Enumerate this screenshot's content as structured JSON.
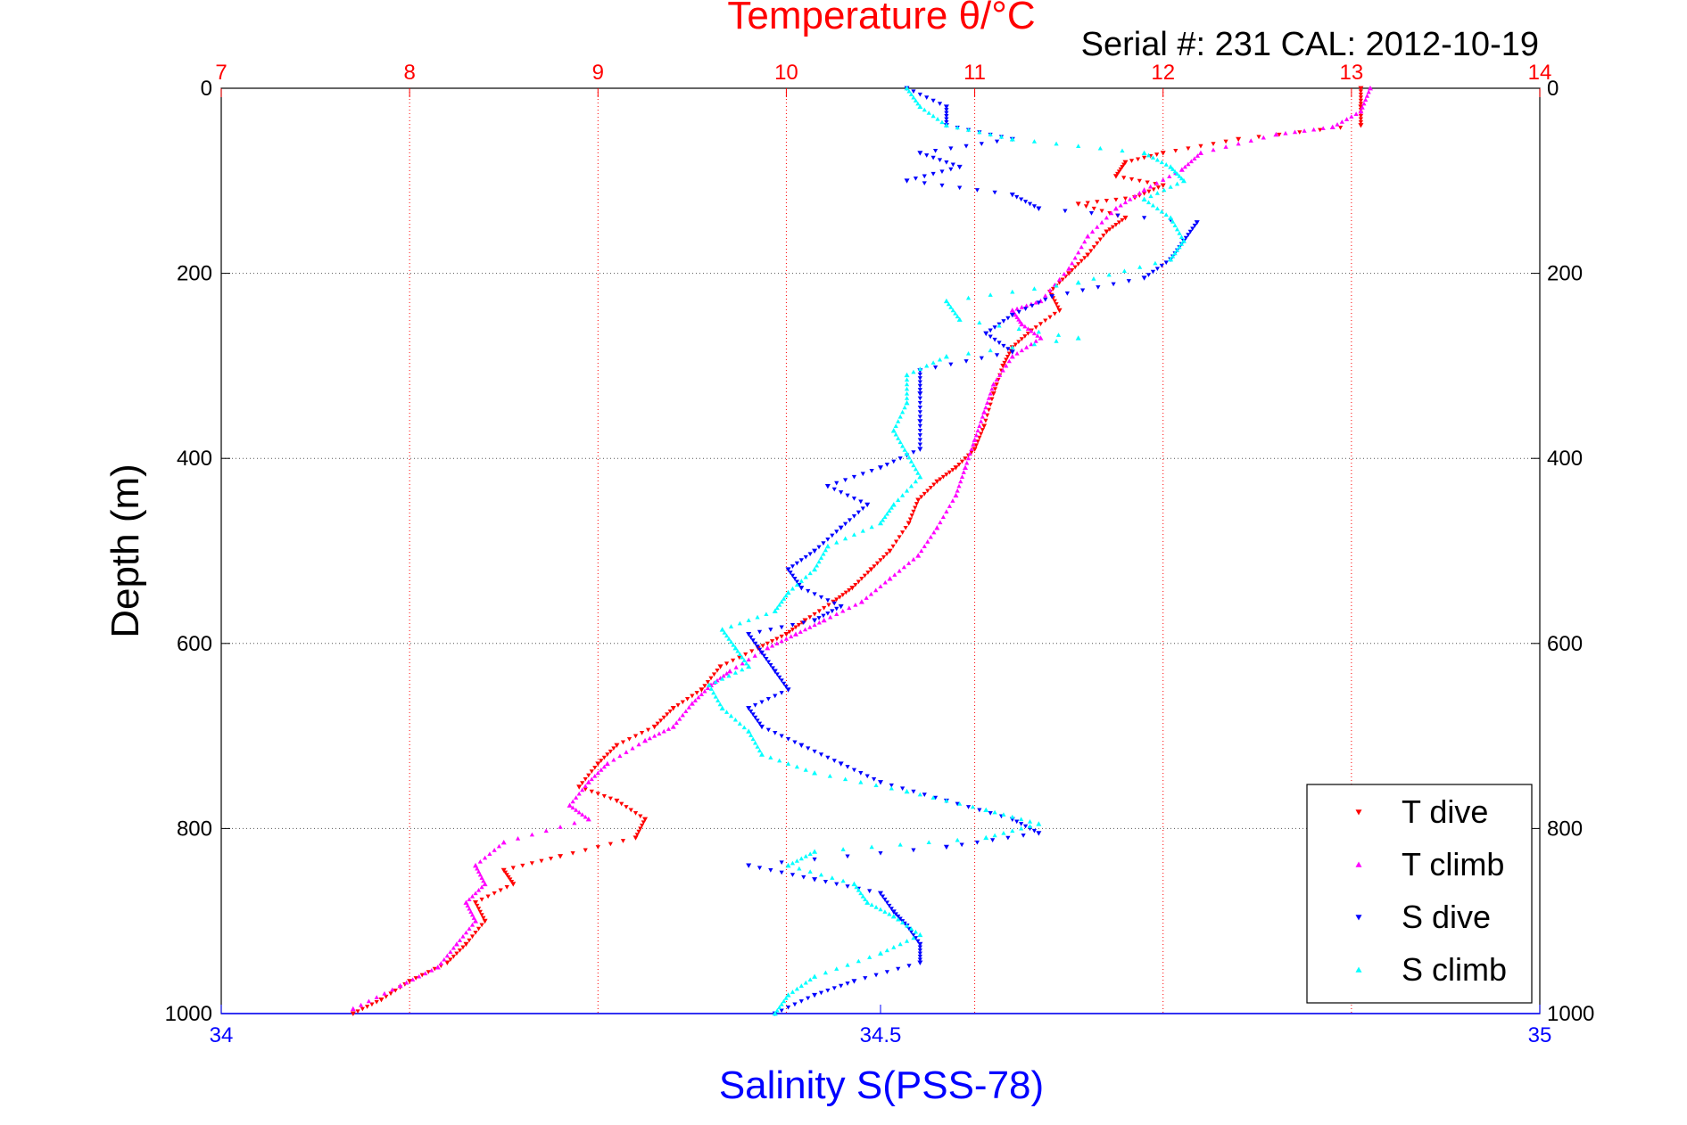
{
  "chart_data": {
    "type": "scatter",
    "title": "Temperature θ/°C",
    "subtitle": "Serial #: 231   CAL: 2012-10-19",
    "xlabel_bottom": "Salinity S(PSS-78)",
    "xlabel_top": "",
    "ylabel": "Depth (m)",
    "axes": {
      "temperature": {
        "range": [
          7,
          14
        ],
        "ticks": [
          "7",
          "8",
          "9",
          "10",
          "11",
          "12",
          "13",
          "14"
        ],
        "color": "#ff0000",
        "position": "top"
      },
      "salinity": {
        "range": [
          34,
          35
        ],
        "ticks": [
          "34",
          "34.5",
          "35"
        ],
        "tick_values": [
          34,
          34.5,
          35
        ],
        "color": "#0000ff",
        "position": "bottom"
      },
      "depth": {
        "range": [
          0,
          1000
        ],
        "reversed": true,
        "ticks": [
          "0",
          "200",
          "400",
          "600",
          "800",
          "1000"
        ],
        "tick_values": [
          0,
          200,
          400,
          600,
          800,
          1000
        ]
      }
    },
    "grid": true,
    "legend_position": "bottom-right",
    "series": [
      {
        "name": "T dive",
        "axis": "temperature",
        "color": "#ff0000",
        "marker": "triangle-down",
        "points": [
          [
            13.05,
            0
          ],
          [
            13.05,
            20
          ],
          [
            13.05,
            40
          ],
          [
            12.4,
            55
          ],
          [
            12.0,
            70
          ],
          [
            11.8,
            80
          ],
          [
            11.75,
            95
          ],
          [
            12.0,
            105
          ],
          [
            11.85,
            118
          ],
          [
            11.55,
            125
          ],
          [
            11.8,
            140
          ],
          [
            11.7,
            155
          ],
          [
            11.6,
            180
          ],
          [
            11.5,
            200
          ],
          [
            11.4,
            220
          ],
          [
            11.45,
            240
          ],
          [
            11.3,
            262
          ],
          [
            11.2,
            280
          ],
          [
            11.15,
            300
          ],
          [
            11.1,
            330
          ],
          [
            11.05,
            365
          ],
          [
            11.0,
            390
          ],
          [
            10.9,
            410
          ],
          [
            10.8,
            425
          ],
          [
            10.7,
            445
          ],
          [
            10.65,
            470
          ],
          [
            10.55,
            500
          ],
          [
            10.45,
            520
          ],
          [
            10.35,
            540
          ],
          [
            10.25,
            555
          ],
          [
            10.1,
            575
          ],
          [
            10.0,
            590
          ],
          [
            9.85,
            605
          ],
          [
            9.65,
            625
          ],
          [
            9.55,
            650
          ],
          [
            9.4,
            670
          ],
          [
            9.3,
            690
          ],
          [
            9.1,
            710
          ],
          [
            9.0,
            730
          ],
          [
            8.9,
            755
          ],
          [
            9.1,
            770
          ],
          [
            9.25,
            790
          ],
          [
            9.2,
            810
          ],
          [
            8.8,
            830
          ],
          [
            8.5,
            845
          ],
          [
            8.55,
            860
          ],
          [
            8.35,
            880
          ],
          [
            8.4,
            900
          ],
          [
            8.3,
            925
          ],
          [
            8.2,
            945
          ],
          [
            8.0,
            965
          ],
          [
            7.85,
            985
          ],
          [
            7.7,
            1000
          ]
        ]
      },
      {
        "name": "T climb",
        "axis": "temperature",
        "color": "#ff00ff",
        "marker": "triangle-up",
        "points": [
          [
            13.1,
            0
          ],
          [
            13.05,
            25
          ],
          [
            12.9,
            42
          ],
          [
            12.6,
            50
          ],
          [
            12.2,
            70
          ],
          [
            12.1,
            88
          ],
          [
            11.9,
            110
          ],
          [
            11.75,
            130
          ],
          [
            11.6,
            160
          ],
          [
            11.5,
            195
          ],
          [
            11.35,
            230
          ],
          [
            11.2,
            240
          ],
          [
            11.25,
            255
          ],
          [
            11.35,
            270
          ],
          [
            11.2,
            290
          ],
          [
            11.1,
            320
          ],
          [
            11.05,
            350
          ],
          [
            11.0,
            380
          ],
          [
            10.95,
            410
          ],
          [
            10.9,
            440
          ],
          [
            10.8,
            475
          ],
          [
            10.7,
            505
          ],
          [
            10.55,
            530
          ],
          [
            10.4,
            555
          ],
          [
            10.2,
            575
          ],
          [
            10.05,
            590
          ],
          [
            9.9,
            605
          ],
          [
            9.7,
            630
          ],
          [
            9.6,
            645
          ],
          [
            9.5,
            665
          ],
          [
            9.4,
            690
          ],
          [
            9.25,
            705
          ],
          [
            9.05,
            730
          ],
          [
            8.95,
            750
          ],
          [
            8.85,
            775
          ],
          [
            8.95,
            790
          ],
          [
            8.5,
            815
          ],
          [
            8.35,
            840
          ],
          [
            8.4,
            860
          ],
          [
            8.3,
            880
          ],
          [
            8.35,
            900
          ],
          [
            8.25,
            925
          ],
          [
            8.15,
            950
          ],
          [
            7.95,
            970
          ],
          [
            7.7,
            995
          ]
        ]
      },
      {
        "name": "S dive",
        "axis": "salinity",
        "color": "#0000ff",
        "marker": "triangle-down",
        "points": [
          [
            34.52,
            0
          ],
          [
            34.55,
            20
          ],
          [
            34.55,
            40
          ],
          [
            34.6,
            55
          ],
          [
            34.53,
            70
          ],
          [
            34.56,
            85
          ],
          [
            34.52,
            100
          ],
          [
            34.6,
            115
          ],
          [
            34.62,
            130
          ],
          [
            34.74,
            145
          ],
          [
            34.73,
            165
          ],
          [
            34.72,
            185
          ],
          [
            34.7,
            205
          ],
          [
            34.63,
            225
          ],
          [
            34.6,
            245
          ],
          [
            34.58,
            265
          ],
          [
            34.6,
            285
          ],
          [
            34.53,
            305
          ],
          [
            34.53,
            330
          ],
          [
            34.53,
            360
          ],
          [
            34.53,
            390
          ],
          [
            34.5,
            410
          ],
          [
            34.46,
            430
          ],
          [
            34.49,
            450
          ],
          [
            34.47,
            475
          ],
          [
            34.45,
            500
          ],
          [
            34.43,
            520
          ],
          [
            34.44,
            540
          ],
          [
            34.47,
            560
          ],
          [
            34.45,
            575
          ],
          [
            34.4,
            590
          ],
          [
            34.41,
            610
          ],
          [
            34.42,
            630
          ],
          [
            34.43,
            650
          ],
          [
            34.4,
            670
          ],
          [
            34.41,
            690
          ],
          [
            34.44,
            710
          ],
          [
            34.47,
            730
          ],
          [
            34.5,
            750
          ],
          [
            34.55,
            770
          ],
          [
            34.6,
            790
          ],
          [
            34.62,
            805
          ],
          [
            34.55,
            820
          ],
          [
            34.4,
            840
          ],
          [
            34.45,
            855
          ],
          [
            34.5,
            870
          ],
          [
            34.51,
            890
          ],
          [
            34.52,
            905
          ],
          [
            34.53,
            925
          ],
          [
            34.53,
            945
          ],
          [
            34.48,
            965
          ],
          [
            34.45,
            980
          ],
          [
            34.42,
            1000
          ]
        ]
      },
      {
        "name": "S climb",
        "axis": "salinity",
        "color": "#00ffff",
        "marker": "triangle-up",
        "points": [
          [
            34.52,
            0
          ],
          [
            34.53,
            20
          ],
          [
            34.55,
            40
          ],
          [
            34.6,
            55
          ],
          [
            34.7,
            70
          ],
          [
            34.72,
            85
          ],
          [
            34.73,
            100
          ],
          [
            34.7,
            120
          ],
          [
            34.72,
            140
          ],
          [
            34.73,
            165
          ],
          [
            34.72,
            185
          ],
          [
            34.65,
            210
          ],
          [
            34.55,
            230
          ],
          [
            34.56,
            250
          ],
          [
            34.65,
            270
          ],
          [
            34.55,
            290
          ],
          [
            34.52,
            310
          ],
          [
            34.52,
            340
          ],
          [
            34.51,
            370
          ],
          [
            34.52,
            395
          ],
          [
            34.53,
            420
          ],
          [
            34.51,
            450
          ],
          [
            34.5,
            470
          ],
          [
            34.46,
            495
          ],
          [
            34.45,
            520
          ],
          [
            34.43,
            545
          ],
          [
            34.42,
            565
          ],
          [
            34.38,
            585
          ],
          [
            34.39,
            605
          ],
          [
            34.4,
            625
          ],
          [
            34.37,
            645
          ],
          [
            34.38,
            670
          ],
          [
            34.4,
            695
          ],
          [
            34.41,
            720
          ],
          [
            34.45,
            740
          ],
          [
            34.52,
            760
          ],
          [
            34.58,
            780
          ],
          [
            34.62,
            795
          ],
          [
            34.58,
            810
          ],
          [
            34.45,
            825
          ],
          [
            34.43,
            840
          ],
          [
            34.48,
            860
          ],
          [
            34.49,
            880
          ],
          [
            34.51,
            895
          ],
          [
            34.53,
            915
          ],
          [
            34.5,
            935
          ],
          [
            34.45,
            960
          ],
          [
            34.43,
            980
          ],
          [
            34.42,
            1000
          ]
        ]
      }
    ]
  }
}
